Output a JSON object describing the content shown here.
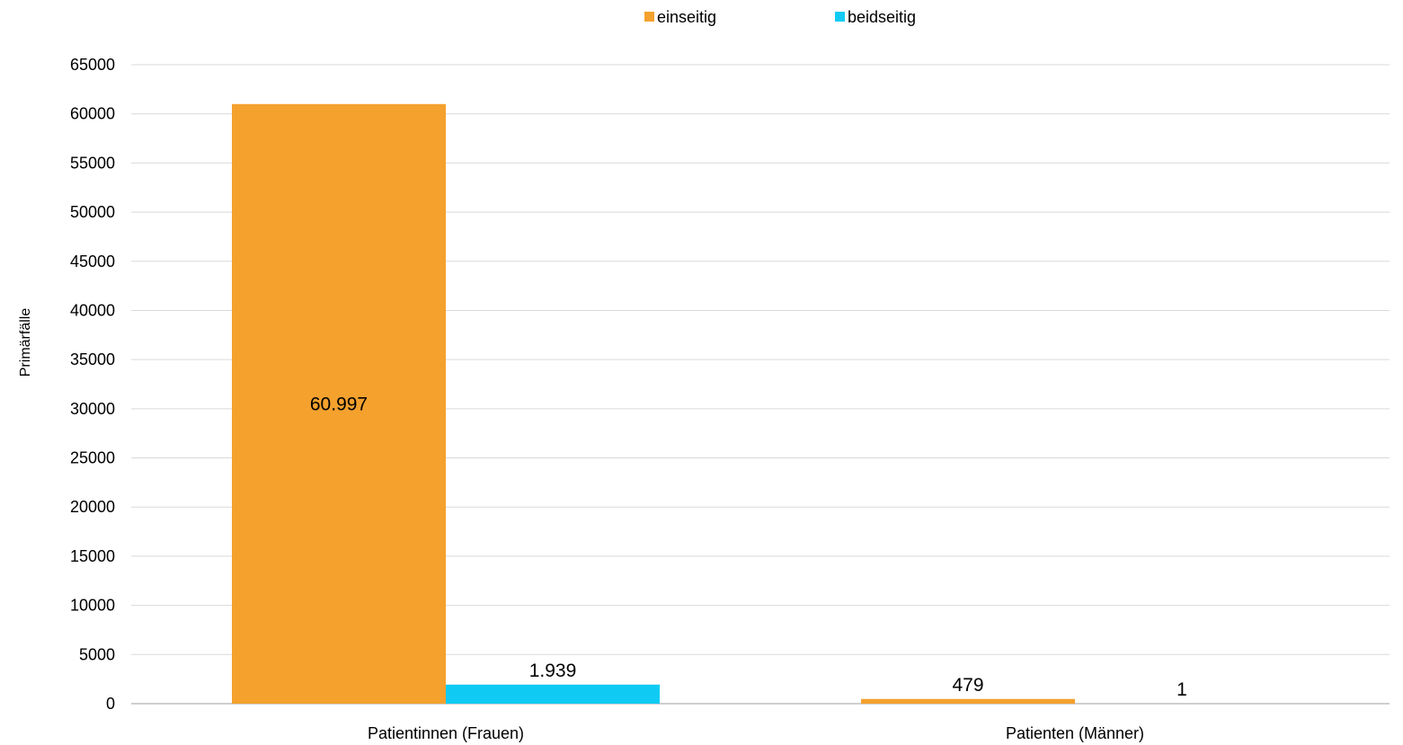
{
  "chart_data": {
    "type": "bar",
    "categories": [
      "Patientinnen (Frauen)",
      "Patienten (Männer)"
    ],
    "series": [
      {
        "name": "einseitig",
        "color": "#F4A12E",
        "values": [
          60997,
          479
        ],
        "labels": [
          "60.997",
          "479"
        ]
      },
      {
        "name": "beidseitig",
        "color": "#0FCBF4",
        "values": [
          1939,
          1
        ],
        "labels": [
          "1.939",
          "1"
        ]
      }
    ],
    "ylabel": "Primärfälle",
    "ylim": [
      0,
      65000
    ],
    "yticks": [
      "0",
      "5000",
      "10000",
      "15000",
      "20000",
      "25000",
      "30000",
      "35000",
      "40000",
      "45000",
      "50000",
      "55000",
      "60000",
      "65000"
    ],
    "grid": true,
    "legend_position": "top"
  }
}
